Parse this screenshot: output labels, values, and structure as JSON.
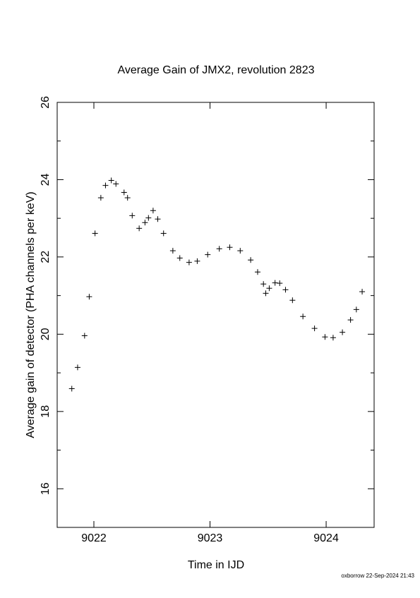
{
  "chart_data": {
    "type": "scatter",
    "title": "Average Gain of JMX2, revolution 2823",
    "x_label": "Time in IJD",
    "y_label": "Average gain of detector (PHA channels per keV)",
    "footer": "oxborrow 22-Sep-2024 21:43",
    "marker": "plus",
    "color": "#000000",
    "xlim": [
      9021.684,
      9024.413
    ],
    "xticks": [
      9022,
      9023,
      9024
    ],
    "ylim": [
      15,
      26
    ],
    "yticks": [
      16,
      18,
      20,
      22,
      24,
      26
    ],
    "yminorticks": [
      17,
      19,
      21,
      23,
      25
    ],
    "x": [
      9021.81,
      9021.86,
      9021.92,
      9021.96,
      9022.01,
      9022.06,
      9022.1,
      9022.15,
      9022.19,
      9022.26,
      9022.29,
      9022.33,
      9022.39,
      9022.44,
      9022.47,
      9022.51,
      9022.55,
      9022.6,
      9022.68,
      9022.74,
      9022.82,
      9022.89,
      9022.98,
      9023.08,
      9023.17,
      9023.26,
      9023.35,
      9023.41,
      9023.46,
      9023.48,
      9023.51,
      9023.56,
      9023.6,
      9023.65,
      9023.71,
      9023.8,
      9023.9,
      9023.99,
      9024.06,
      9024.14,
      9024.21,
      9024.26,
      9024.31
    ],
    "values": [
      18.59,
      19.14,
      19.96,
      20.97,
      22.61,
      23.53,
      23.85,
      23.98,
      23.89,
      23.67,
      23.53,
      23.07,
      22.74,
      22.89,
      23.01,
      23.2,
      22.98,
      22.61,
      22.16,
      21.97,
      21.86,
      21.89,
      22.06,
      22.21,
      22.25,
      22.16,
      21.92,
      21.61,
      21.3,
      21.06,
      21.19,
      21.33,
      21.32,
      21.15,
      20.88,
      20.46,
      20.15,
      19.93,
      19.91,
      20.05,
      20.37,
      20.64,
      21.1
    ]
  }
}
